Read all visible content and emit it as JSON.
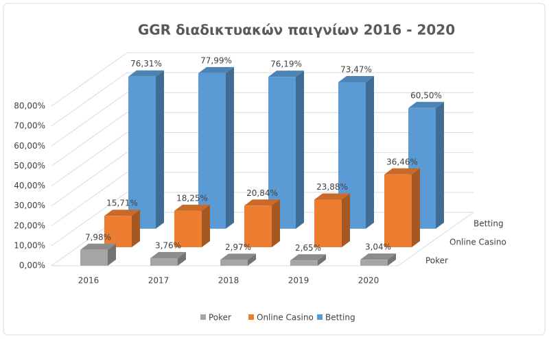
{
  "chart_data": {
    "type": "bar3d",
    "title": "GGR διαδικτυακών παιγνίων 2016 - 2020",
    "categories": [
      "2016",
      "2017",
      "2018",
      "2019",
      "2020"
    ],
    "series": [
      {
        "name": "Poker",
        "color": "#a5a5a5",
        "values": [
          7.98,
          3.76,
          2.97,
          2.65,
          3.04
        ],
        "value_labels": [
          "7,98%",
          "3,76%",
          "2,97%",
          "2,65%",
          "3,04%"
        ]
      },
      {
        "name": "Online Casino",
        "color": "#ed7d31",
        "values": [
          15.71,
          18.25,
          20.84,
          23.88,
          36.46
        ],
        "value_labels": [
          "15,71%",
          "18,25%",
          "20,84%",
          "23,88%",
          "36,46%"
        ]
      },
      {
        "name": "Betting",
        "color": "#5b9bd5",
        "values": [
          76.31,
          77.99,
          76.19,
          73.47,
          60.5
        ],
        "value_labels": [
          "76,31%",
          "77,99%",
          "76,19%",
          "73,47%",
          "60,50%"
        ]
      }
    ],
    "ylim": [
      0,
      80
    ],
    "yticks": [
      {
        "value": 0,
        "label": "0,00%"
      },
      {
        "value": 10,
        "label": "10,00%"
      },
      {
        "value": 20,
        "label": "20,00%"
      },
      {
        "value": 30,
        "label": "30,00%"
      },
      {
        "value": 40,
        "label": "40,00%"
      },
      {
        "value": 50,
        "label": "50,00%"
      },
      {
        "value": 60,
        "label": "60,00%"
      },
      {
        "value": 70,
        "label": "70,00%"
      },
      {
        "value": 80,
        "label": "80,00%"
      }
    ],
    "grid": true,
    "legend": "bottom"
  }
}
